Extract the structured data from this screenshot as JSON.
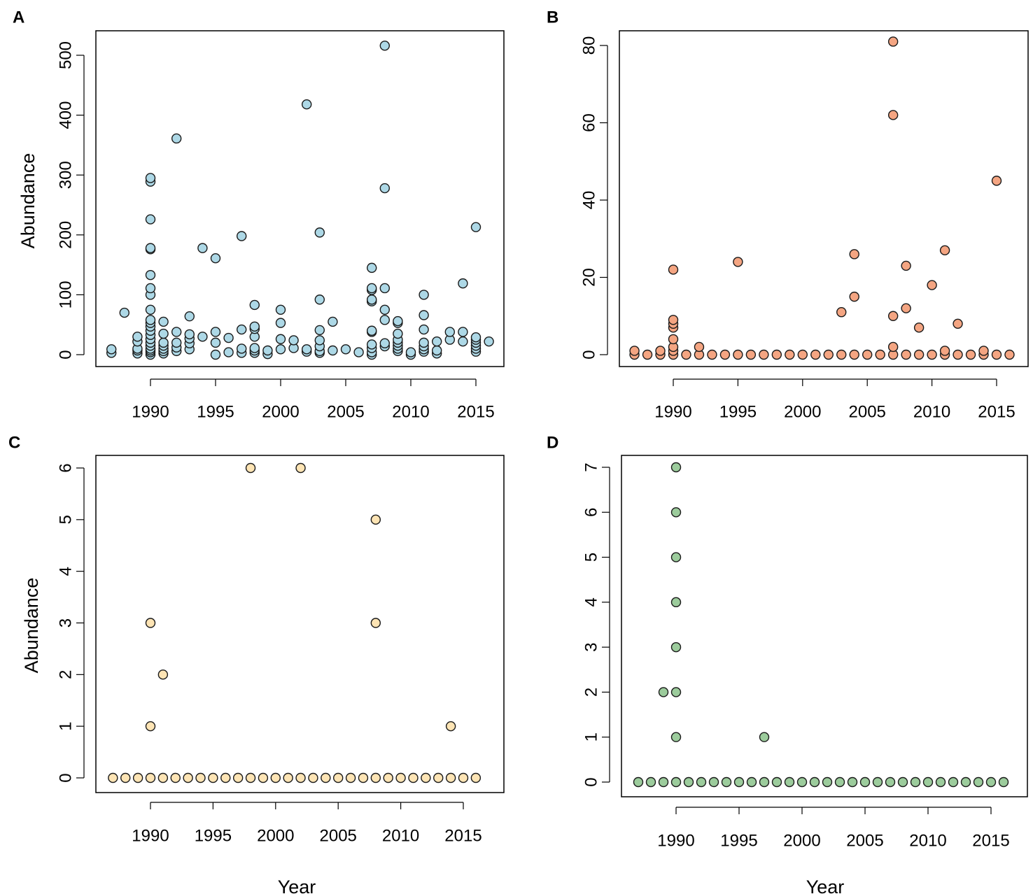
{
  "figure": {
    "x_axis_title": "Year",
    "y_axis_title": "Abundance"
  },
  "chart_data": [
    {
      "panel": "A",
      "type": "scatter",
      "color": "#add8e6",
      "xlabel": "",
      "ylabel": "Abundance",
      "xlim": [
        1986,
        2017
      ],
      "ylim": [
        0,
        520
      ],
      "xticks": [
        1990,
        1995,
        2000,
        2005,
        2010,
        2015
      ],
      "yticks": [
        0,
        100,
        200,
        300,
        400,
        500
      ],
      "points": [
        [
          1987,
          3
        ],
        [
          1987,
          9
        ],
        [
          1988,
          70
        ],
        [
          1989,
          2
        ],
        [
          1989,
          7
        ],
        [
          1989,
          10
        ],
        [
          1989,
          22
        ],
        [
          1989,
          30
        ],
        [
          1990,
          0
        ],
        [
          1990,
          4
        ],
        [
          1990,
          7
        ],
        [
          1990,
          10
        ],
        [
          1990,
          15
        ],
        [
          1990,
          20
        ],
        [
          1990,
          26
        ],
        [
          1990,
          33
        ],
        [
          1990,
          40
        ],
        [
          1990,
          47
        ],
        [
          1990,
          53
        ],
        [
          1990,
          58
        ],
        [
          1990,
          75
        ],
        [
          1990,
          100
        ],
        [
          1990,
          111
        ],
        [
          1990,
          133
        ],
        [
          1990,
          176
        ],
        [
          1990,
          178
        ],
        [
          1990,
          226
        ],
        [
          1990,
          289
        ],
        [
          1990,
          295
        ],
        [
          1991,
          2
        ],
        [
          1991,
          6
        ],
        [
          1991,
          10
        ],
        [
          1991,
          15
        ],
        [
          1991,
          20
        ],
        [
          1991,
          35
        ],
        [
          1991,
          55
        ],
        [
          1992,
          6
        ],
        [
          1992,
          12
        ],
        [
          1992,
          20
        ],
        [
          1992,
          38
        ],
        [
          1992,
          361
        ],
        [
          1993,
          9
        ],
        [
          1993,
          19
        ],
        [
          1993,
          27
        ],
        [
          1993,
          34
        ],
        [
          1993,
          64
        ],
        [
          1994,
          30
        ],
        [
          1994,
          178
        ],
        [
          1995,
          0
        ],
        [
          1995,
          20
        ],
        [
          1995,
          38
        ],
        [
          1995,
          161
        ],
        [
          1996,
          4
        ],
        [
          1996,
          28
        ],
        [
          1997,
          3
        ],
        [
          1997,
          10
        ],
        [
          1997,
          42
        ],
        [
          1997,
          198
        ],
        [
          1998,
          3
        ],
        [
          1998,
          7
        ],
        [
          1998,
          11
        ],
        [
          1998,
          30
        ],
        [
          1998,
          43
        ],
        [
          1998,
          47
        ],
        [
          1998,
          83
        ],
        [
          1999,
          1
        ],
        [
          1999,
          7
        ],
        [
          2000,
          9
        ],
        [
          2000,
          26
        ],
        [
          2000,
          53
        ],
        [
          2000,
          75
        ],
        [
          2001,
          11
        ],
        [
          2001,
          24
        ],
        [
          2002,
          5
        ],
        [
          2002,
          9
        ],
        [
          2002,
          418
        ],
        [
          2003,
          3
        ],
        [
          2003,
          6
        ],
        [
          2003,
          14
        ],
        [
          2003,
          24
        ],
        [
          2003,
          41
        ],
        [
          2003,
          92
        ],
        [
          2003,
          204
        ],
        [
          2004,
          7
        ],
        [
          2004,
          55
        ],
        [
          2005,
          9
        ],
        [
          2006,
          4
        ],
        [
          2007,
          0
        ],
        [
          2007,
          4
        ],
        [
          2007,
          11
        ],
        [
          2007,
          17
        ],
        [
          2007,
          38
        ],
        [
          2007,
          40
        ],
        [
          2007,
          89
        ],
        [
          2007,
          92
        ],
        [
          2007,
          108
        ],
        [
          2007,
          111
        ],
        [
          2007,
          145
        ],
        [
          2008,
          14
        ],
        [
          2008,
          19
        ],
        [
          2008,
          58
        ],
        [
          2008,
          75
        ],
        [
          2008,
          111
        ],
        [
          2008,
          278
        ],
        [
          2008,
          516
        ],
        [
          2009,
          6
        ],
        [
          2009,
          10
        ],
        [
          2009,
          15
        ],
        [
          2009,
          20
        ],
        [
          2009,
          25
        ],
        [
          2009,
          35
        ],
        [
          2009,
          53
        ],
        [
          2009,
          56
        ],
        [
          2010,
          0
        ],
        [
          2010,
          4
        ],
        [
          2011,
          5
        ],
        [
          2011,
          9
        ],
        [
          2011,
          14
        ],
        [
          2011,
          20
        ],
        [
          2011,
          42
        ],
        [
          2011,
          66
        ],
        [
          2011,
          100
        ],
        [
          2012,
          2
        ],
        [
          2012,
          7
        ],
        [
          2012,
          22
        ],
        [
          2013,
          25
        ],
        [
          2013,
          38
        ],
        [
          2014,
          22
        ],
        [
          2014,
          38
        ],
        [
          2014,
          119
        ],
        [
          2015,
          5
        ],
        [
          2015,
          10
        ],
        [
          2015,
          15
        ],
        [
          2015,
          20
        ],
        [
          2015,
          25
        ],
        [
          2015,
          29
        ],
        [
          2015,
          213
        ],
        [
          2016,
          22
        ]
      ]
    },
    {
      "panel": "B",
      "type": "scatter",
      "color": "#f4a582",
      "xlabel": "",
      "ylabel": "",
      "xlim": [
        1986,
        2017
      ],
      "ylim": [
        0,
        81
      ],
      "xticks": [
        1990,
        1995,
        2000,
        2005,
        2010,
        2015
      ],
      "yticks": [
        0,
        20,
        40,
        60,
        80
      ],
      "points": [
        [
          1987,
          0
        ],
        [
          1987,
          1
        ],
        [
          1988,
          0
        ],
        [
          1989,
          0
        ],
        [
          1989,
          1
        ],
        [
          1990,
          0
        ],
        [
          1990,
          1
        ],
        [
          1990,
          2
        ],
        [
          1990,
          4
        ],
        [
          1990,
          7
        ],
        [
          1990,
          8
        ],
        [
          1990,
          9
        ],
        [
          1990,
          22
        ],
        [
          1991,
          0
        ],
        [
          1992,
          0
        ],
        [
          1992,
          2
        ],
        [
          1993,
          0
        ],
        [
          1994,
          0
        ],
        [
          1995,
          0
        ],
        [
          1995,
          24
        ],
        [
          1996,
          0
        ],
        [
          1997,
          0
        ],
        [
          1998,
          0
        ],
        [
          1999,
          0
        ],
        [
          2000,
          0
        ],
        [
          2001,
          0
        ],
        [
          2002,
          0
        ],
        [
          2003,
          0
        ],
        [
          2003,
          11
        ],
        [
          2004,
          0
        ],
        [
          2004,
          15
        ],
        [
          2004,
          26
        ],
        [
          2005,
          0
        ],
        [
          2006,
          0
        ],
        [
          2007,
          0
        ],
        [
          2007,
          2
        ],
        [
          2007,
          10
        ],
        [
          2007,
          62
        ],
        [
          2007,
          81
        ],
        [
          2008,
          0
        ],
        [
          2008,
          12
        ],
        [
          2008,
          23
        ],
        [
          2009,
          0
        ],
        [
          2009,
          7
        ],
        [
          2010,
          0
        ],
        [
          2010,
          18
        ],
        [
          2011,
          0
        ],
        [
          2011,
          1
        ],
        [
          2011,
          27
        ],
        [
          2012,
          0
        ],
        [
          2012,
          8
        ],
        [
          2013,
          0
        ],
        [
          2014,
          0
        ],
        [
          2014,
          1
        ],
        [
          2015,
          0
        ],
        [
          2015,
          45
        ],
        [
          2016,
          0
        ]
      ]
    },
    {
      "panel": "C",
      "type": "scatter",
      "color": "#fde4b4",
      "xlabel": "Year",
      "ylabel": "Abundance",
      "xlim": [
        1986,
        2017
      ],
      "ylim": [
        0,
        6
      ],
      "xticks": [
        1990,
        1995,
        2000,
        2005,
        2010,
        2015
      ],
      "yticks": [
        0,
        1,
        2,
        3,
        4,
        5,
        6
      ],
      "points": [
        [
          1987,
          0
        ],
        [
          1988,
          0
        ],
        [
          1989,
          0
        ],
        [
          1990,
          0
        ],
        [
          1990,
          1
        ],
        [
          1990,
          3
        ],
        [
          1991,
          0
        ],
        [
          1991,
          2
        ],
        [
          1992,
          0
        ],
        [
          1993,
          0
        ],
        [
          1994,
          0
        ],
        [
          1995,
          0
        ],
        [
          1996,
          0
        ],
        [
          1997,
          0
        ],
        [
          1998,
          0
        ],
        [
          1998,
          6
        ],
        [
          1999,
          0
        ],
        [
          2000,
          0
        ],
        [
          2001,
          0
        ],
        [
          2002,
          0
        ],
        [
          2002,
          6
        ],
        [
          2003,
          0
        ],
        [
          2004,
          0
        ],
        [
          2005,
          0
        ],
        [
          2006,
          0
        ],
        [
          2007,
          0
        ],
        [
          2008,
          0
        ],
        [
          2008,
          3
        ],
        [
          2008,
          5
        ],
        [
          2009,
          0
        ],
        [
          2010,
          0
        ],
        [
          2011,
          0
        ],
        [
          2012,
          0
        ],
        [
          2013,
          0
        ],
        [
          2014,
          0
        ],
        [
          2014,
          1
        ],
        [
          2015,
          0
        ],
        [
          2016,
          0
        ]
      ]
    },
    {
      "panel": "D",
      "type": "scatter",
      "color": "#9ccc9c",
      "xlabel": "Year",
      "ylabel": "",
      "xlim": [
        1986,
        2017
      ],
      "ylim": [
        0,
        7
      ],
      "xticks": [
        1990,
        1995,
        2000,
        2005,
        2010,
        2015
      ],
      "yticks": [
        0,
        1,
        2,
        3,
        4,
        5,
        6,
        7
      ],
      "points": [
        [
          1987,
          0
        ],
        [
          1988,
          0
        ],
        [
          1989,
          0
        ],
        [
          1989,
          2
        ],
        [
          1990,
          0
        ],
        [
          1990,
          1
        ],
        [
          1990,
          2
        ],
        [
          1990,
          3
        ],
        [
          1990,
          4
        ],
        [
          1990,
          5
        ],
        [
          1990,
          6
        ],
        [
          1990,
          7
        ],
        [
          1991,
          0
        ],
        [
          1992,
          0
        ],
        [
          1993,
          0
        ],
        [
          1994,
          0
        ],
        [
          1995,
          0
        ],
        [
          1996,
          0
        ],
        [
          1997,
          0
        ],
        [
          1997,
          1
        ],
        [
          1998,
          0
        ],
        [
          1999,
          0
        ],
        [
          2000,
          0
        ],
        [
          2001,
          0
        ],
        [
          2002,
          0
        ],
        [
          2003,
          0
        ],
        [
          2004,
          0
        ],
        [
          2005,
          0
        ],
        [
          2006,
          0
        ],
        [
          2007,
          0
        ],
        [
          2008,
          0
        ],
        [
          2009,
          0
        ],
        [
          2010,
          0
        ],
        [
          2011,
          0
        ],
        [
          2012,
          0
        ],
        [
          2013,
          0
        ],
        [
          2014,
          0
        ],
        [
          2015,
          0
        ],
        [
          2016,
          0
        ]
      ]
    }
  ]
}
